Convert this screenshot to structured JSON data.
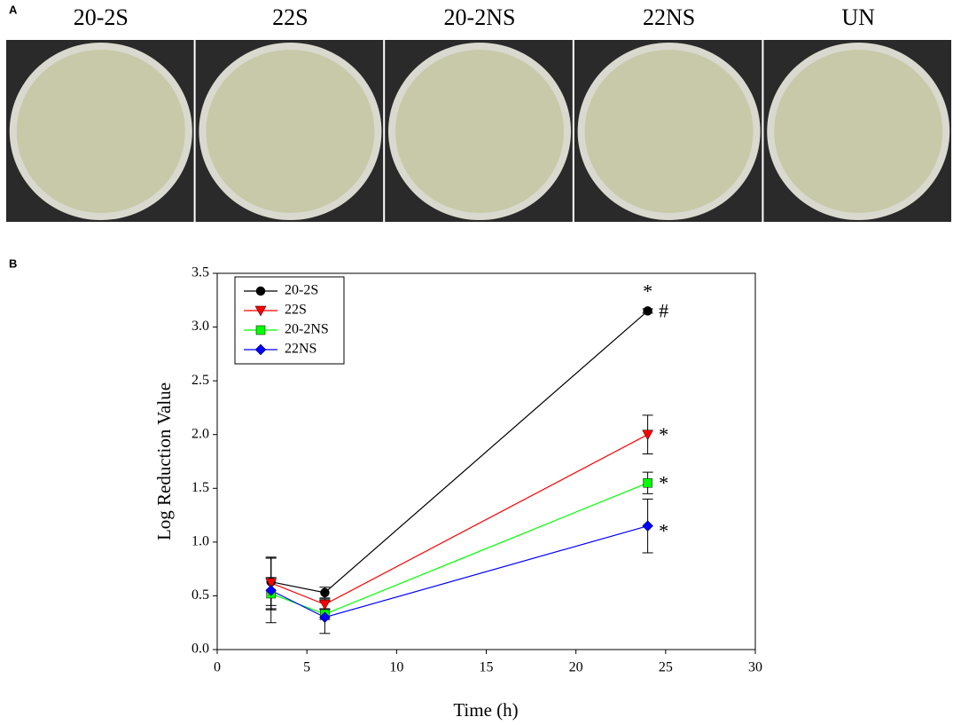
{
  "panel_a": {
    "label": "A",
    "plates": [
      "20-2S",
      "22S",
      "20-2NS",
      "22NS",
      "UN"
    ]
  },
  "chart_data": {
    "type": "line",
    "panel_label": "B",
    "xlabel": "Time (h)",
    "ylabel": "Log Reduction Value",
    "x": [
      3,
      6,
      24
    ],
    "series": [
      {
        "name": "20-2S",
        "color": "#000000",
        "marker": "circle",
        "values": [
          0.63,
          0.53,
          3.15
        ],
        "errors": [
          0.22,
          0.05,
          0.02
        ]
      },
      {
        "name": "22S",
        "color": "#ff0000",
        "marker": "triangle-down",
        "values": [
          0.62,
          0.42,
          2.0
        ],
        "errors": [
          0.24,
          0.05,
          0.18
        ]
      },
      {
        "name": "20-2NS",
        "color": "#00ff00",
        "marker": "square",
        "values": [
          0.52,
          0.33,
          1.55
        ],
        "errors": [
          0.15,
          0.05,
          0.1
        ]
      },
      {
        "name": "22NS",
        "color": "#0000ff",
        "marker": "diamond",
        "values": [
          0.55,
          0.3,
          1.15
        ],
        "errors": [
          0.3,
          0.15,
          0.25
        ]
      }
    ],
    "annotations": [
      "*",
      "#",
      "*",
      "*",
      "*"
    ],
    "xlim": [
      0,
      30
    ],
    "xticks": [
      0,
      5,
      10,
      15,
      20,
      25,
      30
    ],
    "ylim": [
      0,
      3.5
    ],
    "yticks": [
      {
        "value": 0,
        "label": "0.0"
      },
      0.5,
      {
        "value": 1,
        "label": "1.0"
      },
      1.5,
      {
        "value": 2,
        "label": "2.0"
      },
      2.5,
      {
        "value": 3,
        "label": "3.0"
      },
      3.5
    ],
    "legend": "upper left",
    "grid": false
  }
}
